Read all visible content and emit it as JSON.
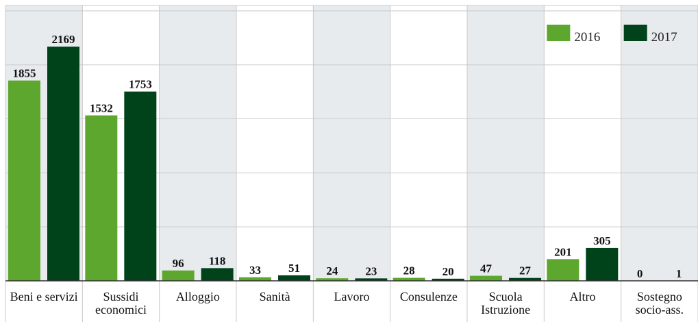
{
  "chart_data": {
    "type": "bar",
    "categories": [
      "Beni e servizi",
      "Sussidi economici",
      "Alloggio",
      "Sanità",
      "Lavoro",
      "Consulenze",
      "Scuola Istruzione",
      "Altro",
      "Sostegno socio-ass."
    ],
    "series": [
      {
        "name": "2016",
        "color": "#5ea72e",
        "values": [
          1855,
          1532,
          96,
          33,
          24,
          28,
          47,
          201,
          0
        ]
      },
      {
        "name": "2017",
        "color": "#00421a",
        "values": [
          2169,
          1753,
          118,
          51,
          23,
          20,
          27,
          305,
          1
        ]
      }
    ],
    "ylim": [
      0,
      2550
    ],
    "yticks": [
      0,
      500,
      1000,
      1500,
      2000,
      2500
    ],
    "grid": true,
    "legend": "top-right"
  }
}
